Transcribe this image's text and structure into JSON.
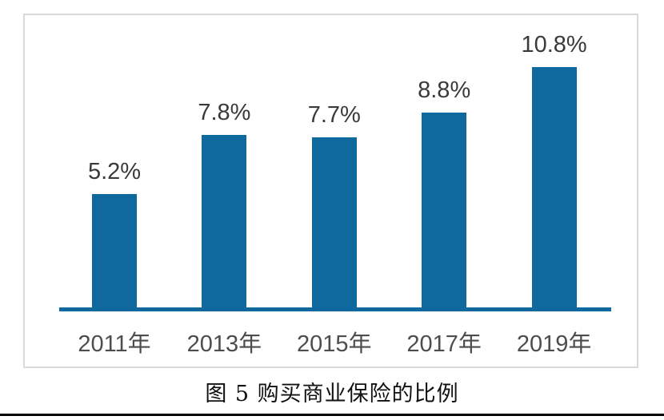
{
  "figure": {
    "caption": "图 5 购买商业保险的比例"
  },
  "chart_data": {
    "type": "bar",
    "title": "图 5 购买商业保险的比例",
    "categories": [
      "2011年",
      "2013年",
      "2015年",
      "2017年",
      "2019年"
    ],
    "values": [
      5.2,
      7.8,
      7.7,
      8.8,
      10.8
    ],
    "data_labels": [
      "5.2%",
      "7.8%",
      "7.7%",
      "8.8%",
      "10.8%"
    ],
    "xlabel": "",
    "ylabel": "",
    "ylim": [
      0,
      12
    ],
    "grid": false,
    "legend": "none",
    "colors": {
      "bar": "#10699e",
      "axis_line": "#10699e",
      "data_label": "#3a3a3a",
      "tick_label": "#4d4d4d",
      "frame_border": "#d9d9d9",
      "page_rule": "#000000"
    }
  }
}
